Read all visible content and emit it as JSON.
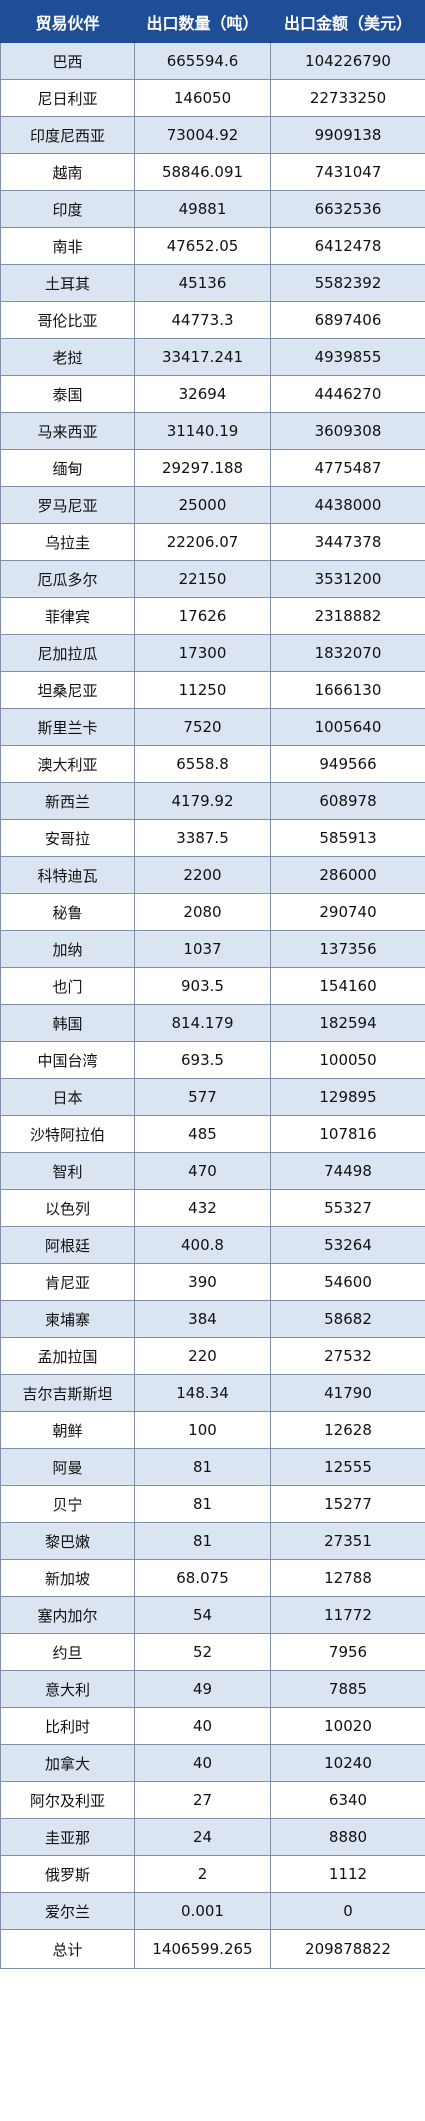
{
  "table": {
    "headers": [
      "贸易伙伴",
      "出口数量（吨）",
      "出口金额（美元）"
    ],
    "rows": [
      [
        "巴西",
        "665594.6",
        "104226790"
      ],
      [
        "尼日利亚",
        "146050",
        "22733250"
      ],
      [
        "印度尼西亚",
        "73004.92",
        "9909138"
      ],
      [
        "越南",
        "58846.091",
        "7431047"
      ],
      [
        "印度",
        "49881",
        "6632536"
      ],
      [
        "南非",
        "47652.05",
        "6412478"
      ],
      [
        "土耳其",
        "45136",
        "5582392"
      ],
      [
        "哥伦比亚",
        "44773.3",
        "6897406"
      ],
      [
        "老挝",
        "33417.241",
        "4939855"
      ],
      [
        "泰国",
        "32694",
        "4446270"
      ],
      [
        "马来西亚",
        "31140.19",
        "3609308"
      ],
      [
        "缅甸",
        "29297.188",
        "4775487"
      ],
      [
        "罗马尼亚",
        "25000",
        "4438000"
      ],
      [
        "乌拉圭",
        "22206.07",
        "3447378"
      ],
      [
        "厄瓜多尔",
        "22150",
        "3531200"
      ],
      [
        "菲律宾",
        "17626",
        "2318882"
      ],
      [
        "尼加拉瓜",
        "17300",
        "1832070"
      ],
      [
        "坦桑尼亚",
        "11250",
        "1666130"
      ],
      [
        "斯里兰卡",
        "7520",
        "1005640"
      ],
      [
        "澳大利亚",
        "6558.8",
        "949566"
      ],
      [
        "新西兰",
        "4179.92",
        "608978"
      ],
      [
        "安哥拉",
        "3387.5",
        "585913"
      ],
      [
        "科特迪瓦",
        "2200",
        "286000"
      ],
      [
        "秘鲁",
        "2080",
        "290740"
      ],
      [
        "加纳",
        "1037",
        "137356"
      ],
      [
        "也门",
        "903.5",
        "154160"
      ],
      [
        "韩国",
        "814.179",
        "182594"
      ],
      [
        "中国台湾",
        "693.5",
        "100050"
      ],
      [
        "日本",
        "577",
        "129895"
      ],
      [
        "沙特阿拉伯",
        "485",
        "107816"
      ],
      [
        "智利",
        "470",
        "74498"
      ],
      [
        "以色列",
        "432",
        "55327"
      ],
      [
        "阿根廷",
        "400.8",
        "53264"
      ],
      [
        "肯尼亚",
        "390",
        "54600"
      ],
      [
        "柬埔寨",
        "384",
        "58682"
      ],
      [
        "孟加拉国",
        "220",
        "27532"
      ],
      [
        "吉尔吉斯斯坦",
        "148.34",
        "41790"
      ],
      [
        "朝鲜",
        "100",
        "12628"
      ],
      [
        "阿曼",
        "81",
        "12555"
      ],
      [
        "贝宁",
        "81",
        "15277"
      ],
      [
        "黎巴嫩",
        "81",
        "27351"
      ],
      [
        "新加坡",
        "68.075",
        "12788"
      ],
      [
        "塞内加尔",
        "54",
        "11772"
      ],
      [
        "约旦",
        "52",
        "7956"
      ],
      [
        "意大利",
        "49",
        "7885"
      ],
      [
        "比利时",
        "40",
        "10020"
      ],
      [
        "加拿大",
        "40",
        "10240"
      ],
      [
        "阿尔及利亚",
        "27",
        "6340"
      ],
      [
        "圭亚那",
        "24",
        "8880"
      ],
      [
        "俄罗斯",
        "2",
        "1112"
      ],
      [
        "爱尔兰",
        "0.001",
        "0"
      ]
    ],
    "total": [
      "总计",
      "1406599.265",
      "209878822"
    ]
  },
  "colors": {
    "header_bg": "#1f4e96",
    "header_text": "#ffffff",
    "stripe": "#dbe5f1",
    "border": "#7f8fa8"
  }
}
